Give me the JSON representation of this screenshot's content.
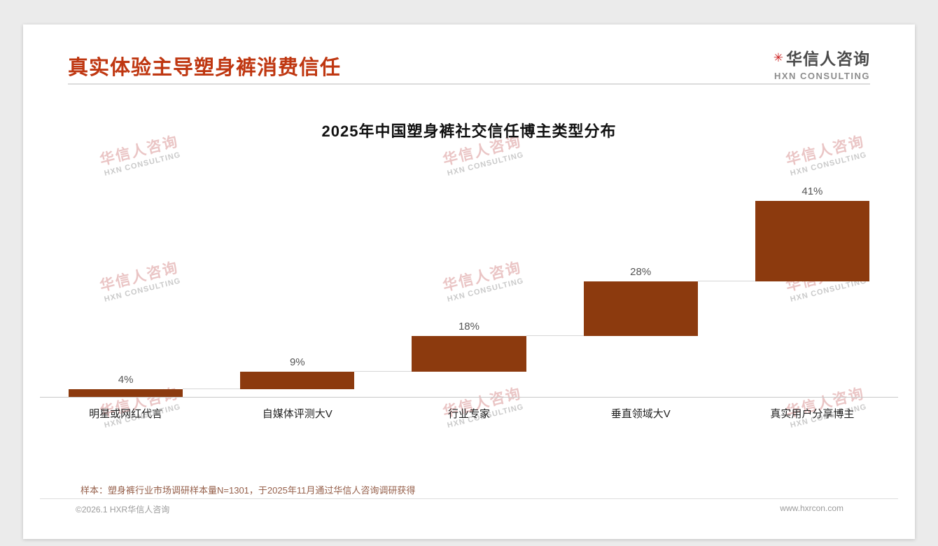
{
  "header": {
    "title": "真实体验主导塑身裤消费信任",
    "logo": {
      "mark": "✳",
      "zh": "华信人咨询",
      "en": "HXN CONSULTING"
    }
  },
  "watermark": {
    "zh": "华信人咨询",
    "en": "HXN CONSULTING"
  },
  "chart_data": {
    "type": "bar",
    "variant": "waterfall",
    "title": "2025年中国塑身裤社交信任博主类型分布",
    "categories": [
      "明星或网红代言",
      "自媒体评测大V",
      "行业专家",
      "垂直领域大V",
      "真实用户分享博主"
    ],
    "values": [
      4,
      9,
      18,
      28,
      41
    ],
    "labels": [
      "4%",
      "9%",
      "18%",
      "28%",
      "41%"
    ],
    "cumulative": [
      4,
      13,
      31,
      59,
      100
    ],
    "unit": "%",
    "ylim": [
      0,
      100
    ],
    "grid": false,
    "legend": "none",
    "bar_color": "#8c3a0e",
    "connector_color": "#d6d6d6",
    "label_color": "#555555"
  },
  "footer": {
    "note": "样本：塑身裤行业市场调研样本量N=1301，于2025年11月通过华信人咨询调研获得",
    "copyright": "©2026.1 HXR华信人咨询",
    "website": "www.hxrcon.com"
  }
}
